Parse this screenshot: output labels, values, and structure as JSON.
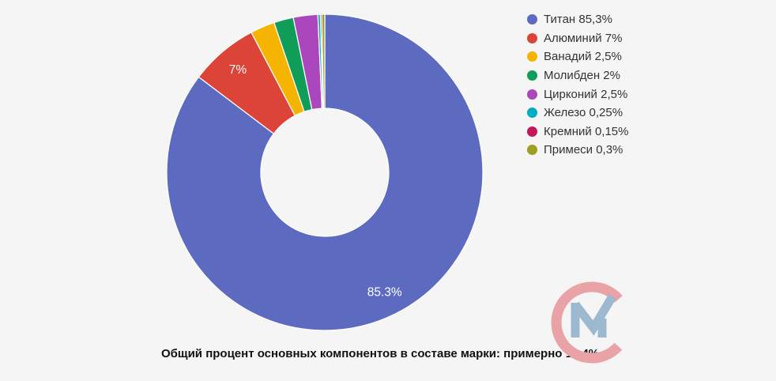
{
  "background_color": "#f5f5f5",
  "chart_data": {
    "type": "pie",
    "title": "",
    "caption": "Общий процент основных компонентов в составе марки: примерно 14,4%",
    "donut_hole_ratio": 0.405,
    "start_angle_deg": 0,
    "direction": "clockwise",
    "legend_position": "right",
    "separator_color": "#ffffff",
    "slices": [
      {
        "name": "Титан",
        "value": 85.3,
        "color": "#5c6bc0",
        "legend_label": "Титан 85,3%",
        "inside_label": "85.3%"
      },
      {
        "name": "Алюминий",
        "value": 7,
        "color": "#db4437",
        "legend_label": "Алюминий 7%",
        "inside_label": "7%"
      },
      {
        "name": "Ванадий",
        "value": 2.5,
        "color": "#f4b400",
        "legend_label": "Ванадий 2,5%",
        "inside_label": ""
      },
      {
        "name": "Молибден",
        "value": 2,
        "color": "#0f9d58",
        "legend_label": "Молибден 2%",
        "inside_label": ""
      },
      {
        "name": "Цирконий",
        "value": 2.5,
        "color": "#ab47bc",
        "legend_label": "Цирконий 2,5%",
        "inside_label": ""
      },
      {
        "name": "Железо",
        "value": 0.25,
        "color": "#00acc1",
        "legend_label": "Железо 0,25%",
        "inside_label": ""
      },
      {
        "name": "Кремний",
        "value": 0.15,
        "color": "#c2185b",
        "legend_label": "Кремний 0,15%",
        "inside_label": ""
      },
      {
        "name": "Примеси",
        "value": 0.3,
        "color": "#9e9d24",
        "legend_label": "Примеси 0,3%",
        "inside_label": ""
      }
    ]
  },
  "logo": {
    "name": "CM watermark",
    "c_color": "#e9a2a6",
    "m_color": "#9cb9cf"
  }
}
